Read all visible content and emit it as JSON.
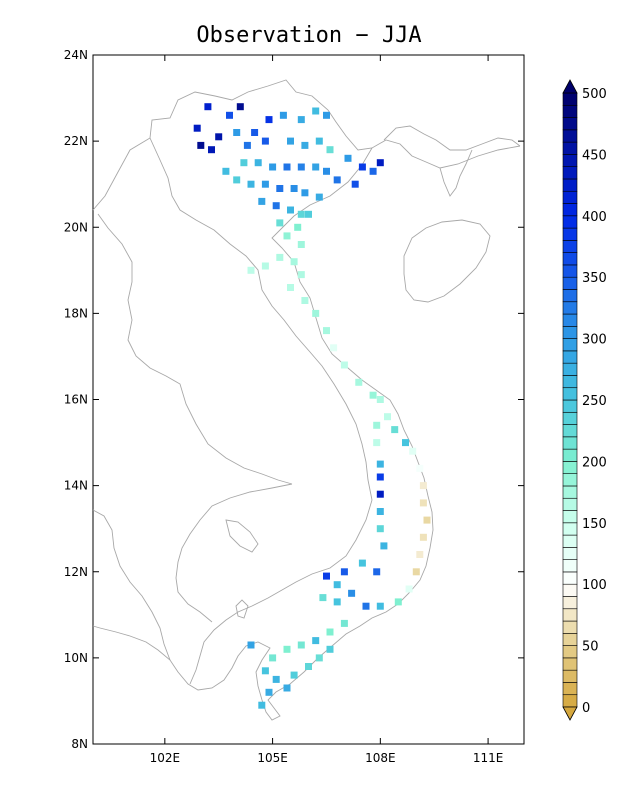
{
  "title": "Observation − JJA",
  "map": {
    "lon_range": [
      100.0,
      112.0
    ],
    "lat_range": [
      8.0,
      24.0
    ],
    "lat_ticks": [
      {
        "value": 24,
        "label": "24N"
      },
      {
        "value": 22,
        "label": "22N"
      },
      {
        "value": 20,
        "label": "20N"
      },
      {
        "value": 18,
        "label": "18N"
      },
      {
        "value": 16,
        "label": "16N"
      },
      {
        "value": 14,
        "label": "14N"
      },
      {
        "value": 12,
        "label": "12N"
      },
      {
        "value": 10,
        "label": "10N"
      },
      {
        "value": 8,
        "label": "8N"
      }
    ],
    "lon_ticks": [
      {
        "value": 102,
        "label": "102E"
      },
      {
        "value": 105,
        "label": "105E"
      },
      {
        "value": 108,
        "label": "108E"
      },
      {
        "value": 111,
        "label": "111E"
      }
    ]
  },
  "colorbar": {
    "min": 0,
    "max": 500,
    "step": 10,
    "labels": [
      "0",
      "50",
      "100",
      "150",
      "200",
      "250",
      "300",
      "350",
      "400",
      "450",
      "500"
    ],
    "label_values": [
      0,
      50,
      100,
      150,
      200,
      250,
      300,
      350,
      400,
      450,
      500
    ]
  },
  "colors": {
    "low": "#d6a83e",
    "mid_low": "#ffffff",
    "mid": "#7ff0d0",
    "high": "#2e9be6",
    "top": "#00006a",
    "coast": "#a8a8a8"
  },
  "stations": [
    [
      103.2,
      22.8,
      420
    ],
    [
      103.8,
      22.6,
      360
    ],
    [
      104.1,
      22.8,
      470
    ],
    [
      104.9,
      22.5,
      390
    ],
    [
      104.5,
      22.2,
      350
    ],
    [
      104.0,
      22.2,
      300
    ],
    [
      103.5,
      22.1,
      450
    ],
    [
      103.3,
      21.8,
      440
    ],
    [
      102.9,
      22.3,
      430
    ],
    [
      103.0,
      21.9,
      470
    ],
    [
      104.3,
      21.9,
      330
    ],
    [
      104.8,
      22.0,
      350
    ],
    [
      105.3,
      22.6,
      300
    ],
    [
      105.8,
      22.5,
      280
    ],
    [
      106.2,
      22.7,
      260
    ],
    [
      106.5,
      22.6,
      300
    ],
    [
      105.5,
      22.0,
      290
    ],
    [
      105.9,
      21.9,
      280
    ],
    [
      106.3,
      22.0,
      260
    ],
    [
      106.6,
      21.8,
      220
    ],
    [
      107.1,
      21.6,
      300
    ],
    [
      107.5,
      21.4,
      380
    ],
    [
      107.8,
      21.3,
      340
    ],
    [
      108.0,
      21.5,
      430
    ],
    [
      104.2,
      21.5,
      240
    ],
    [
      104.6,
      21.5,
      270
    ],
    [
      105.0,
      21.4,
      300
    ],
    [
      105.4,
      21.4,
      330
    ],
    [
      105.8,
      21.4,
      320
    ],
    [
      106.2,
      21.4,
      290
    ],
    [
      106.5,
      21.3,
      310
    ],
    [
      106.8,
      21.1,
      330
    ],
    [
      107.3,
      21.0,
      360
    ],
    [
      103.7,
      21.3,
      260
    ],
    [
      104.0,
      21.1,
      240
    ],
    [
      104.4,
      21.0,
      270
    ],
    [
      104.8,
      21.0,
      300
    ],
    [
      105.2,
      20.9,
      330
    ],
    [
      105.6,
      20.9,
      310
    ],
    [
      105.9,
      20.8,
      300
    ],
    [
      106.3,
      20.7,
      280
    ],
    [
      104.7,
      20.6,
      290
    ],
    [
      105.1,
      20.5,
      330
    ],
    [
      105.5,
      20.4,
      270
    ],
    [
      105.8,
      20.3,
      230
    ],
    [
      105.2,
      20.1,
      220
    ],
    [
      105.7,
      20.0,
      200
    ],
    [
      106.0,
      20.3,
      240
    ],
    [
      105.4,
      19.8,
      190
    ],
    [
      105.8,
      19.6,
      180
    ],
    [
      105.6,
      19.2,
      175
    ],
    [
      105.2,
      19.3,
      170
    ],
    [
      104.8,
      19.1,
      165
    ],
    [
      104.4,
      19.0,
      160
    ],
    [
      105.8,
      18.9,
      170
    ],
    [
      105.5,
      18.6,
      165
    ],
    [
      105.9,
      18.3,
      170
    ],
    [
      106.2,
      18.0,
      180
    ],
    [
      106.5,
      17.6,
      175
    ],
    [
      106.7,
      17.2,
      130
    ],
    [
      107.0,
      16.8,
      160
    ],
    [
      107.4,
      16.4,
      175
    ],
    [
      107.8,
      16.1,
      185
    ],
    [
      108.0,
      16.0,
      170
    ],
    [
      108.2,
      15.6,
      160
    ],
    [
      108.4,
      15.3,
      220
    ],
    [
      108.7,
      15.0,
      250
    ],
    [
      108.9,
      14.8,
      130
    ],
    [
      109.1,
      14.4,
      110
    ],
    [
      109.2,
      14.0,
      80
    ],
    [
      109.2,
      13.6,
      70
    ],
    [
      109.3,
      13.2,
      60
    ],
    [
      109.2,
      12.8,
      70
    ],
    [
      109.1,
      12.4,
      80
    ],
    [
      109.0,
      12.0,
      60
    ],
    [
      108.8,
      11.6,
      130
    ],
    [
      108.5,
      11.3,
      200
    ],
    [
      108.0,
      11.2,
      260
    ],
    [
      107.6,
      11.2,
      330
    ],
    [
      107.2,
      11.5,
      310
    ],
    [
      106.8,
      11.7,
      260
    ],
    [
      106.5,
      11.9,
      380
    ],
    [
      107.0,
      12.0,
      350
    ],
    [
      107.5,
      12.2,
      250
    ],
    [
      107.9,
      12.0,
      340
    ],
    [
      108.1,
      12.6,
      270
    ],
    [
      108.0,
      13.0,
      230
    ],
    [
      108.0,
      13.4,
      270
    ],
    [
      108.0,
      13.8,
      430
    ],
    [
      108.0,
      14.2,
      380
    ],
    [
      108.0,
      14.5,
      270
    ],
    [
      107.9,
      15.0,
      160
    ],
    [
      107.9,
      15.4,
      180
    ],
    [
      106.4,
      11.4,
      220
    ],
    [
      106.8,
      11.3,
      250
    ],
    [
      107.0,
      10.8,
      210
    ],
    [
      106.6,
      10.6,
      200
    ],
    [
      106.2,
      10.4,
      260
    ],
    [
      105.8,
      10.3,
      210
    ],
    [
      105.4,
      10.2,
      200
    ],
    [
      105.0,
      10.0,
      210
    ],
    [
      104.8,
      9.7,
      250
    ],
    [
      105.1,
      9.5,
      270
    ],
    [
      105.4,
      9.3,
      280
    ],
    [
      104.9,
      9.2,
      280
    ],
    [
      104.7,
      8.9,
      260
    ],
    [
      105.6,
      9.6,
      240
    ],
    [
      106.0,
      9.8,
      230
    ],
    [
      106.3,
      10.0,
      220
    ],
    [
      106.6,
      10.2,
      240
    ],
    [
      104.4,
      10.3,
      290
    ]
  ]
}
